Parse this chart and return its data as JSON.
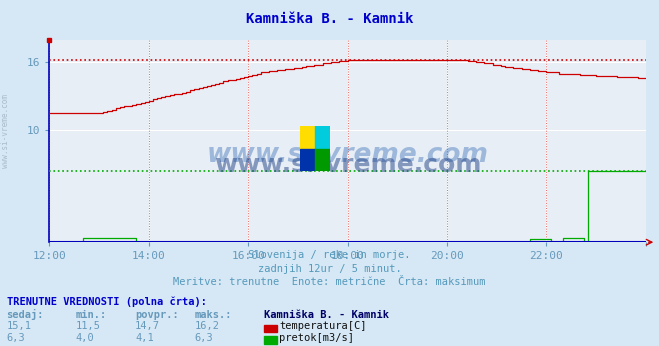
{
  "title": "Kamniška B. - Kamnik",
  "title_color": "#0000cc",
  "bg_color": "#d6e8f5",
  "plot_bg_color": "#e8eef5",
  "grid_color": "#ffffff",
  "xlabel_texts": [
    "12:00",
    "14:00",
    "16:00",
    "18:00",
    "20:00",
    "22:00"
  ],
  "watermark": "www.si-vreme.com",
  "subtitle1": "Slovenija / reke in morje.",
  "subtitle2": "zadnjih 12ur / 5 minut.",
  "subtitle3": "Meritve: trenutne  Enote: metrične  Črta: maksimum",
  "footer_header": "TRENUTNE VREDNOSTI (polna črta):",
  "footer_cols": [
    "sedaj:",
    "min.:",
    "povpr.:",
    "maks.:"
  ],
  "footer_row1": [
    "15,1",
    "11,5",
    "14,7",
    "16,2"
  ],
  "footer_row2": [
    "6,3",
    "4,0",
    "4,1",
    "6,3"
  ],
  "legend_station": "Kamniška B. - Kamnik",
  "legend_items": [
    {
      "label": "temperatura[C]",
      "color": "#cc0000"
    },
    {
      "label": "pretok[m3/s]",
      "color": "#00aa00"
    }
  ],
  "temp_color": "#cc0000",
  "flow_color": "#00aa00",
  "blue_line_color": "#0000bb",
  "temp_max_value": 16.2,
  "flow_max_value": 6.3,
  "ymin": 0.0,
  "ymax": 18.0,
  "ytick_positions": [
    10,
    16
  ],
  "ytick_labels": [
    "10",
    "16"
  ],
  "n_points": 145,
  "xmin": 0,
  "xmax": 144
}
